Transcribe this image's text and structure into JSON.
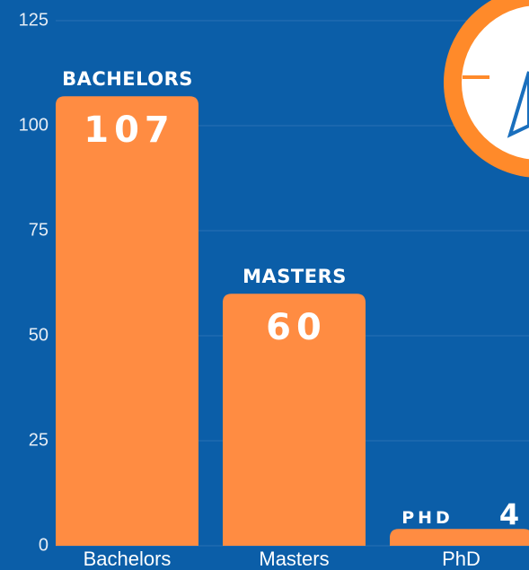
{
  "chart_data": {
    "type": "bar",
    "categories": [
      "Bachelors",
      "Masters",
      "PhD"
    ],
    "bar_labels": [
      "BACHELORS",
      "MASTERS",
      "PHD"
    ],
    "values": [
      107,
      60,
      4
    ],
    "color": "#ff8c42",
    "ylim": [
      0,
      125
    ],
    "yticks": [
      0,
      25,
      50,
      75,
      100,
      125
    ],
    "grid": true
  }
}
